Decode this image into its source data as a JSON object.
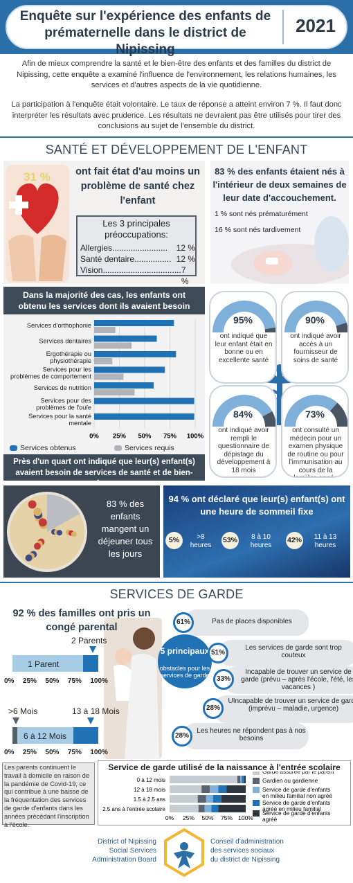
{
  "header": {
    "title_line1": "Enquête sur l'expérience des enfants de",
    "title_line2": "prématernelle dans le district de Nipissing",
    "year": "2021"
  },
  "intro": {
    "p1": "Afin de mieux comprendre la santé et le bien-être des enfants et des familles du district de Nipissing, cette enquête a examiné l'influence de l'environnement, les relations humaines, les services et d'autres aspects de la vie quotidienne.",
    "p2": "La participation à l'enquête était volontaire. Le taux de réponse a atteint environ 7 %. Il faut donc interpréter les résultats avec prudence. Les résultats ne devraient pas être utilisés pour tirer des conclusions au sujet de l'ensemble du district."
  },
  "health": {
    "section_title": "SANTÉ ET DÉVELOPPEMENT DE L'ENFANT",
    "pct31": "31 %",
    "pct31_text": "ont fait état d'au moins un problème de santé chez l'enfant",
    "concerns_title": "Les 3 principales préoccupations:",
    "concerns": [
      {
        "label": "Allergies........................",
        "val": "12 %"
      },
      {
        "label": "Santé dentaire................",
        "val": "12 %"
      },
      {
        "label": "Vision..................................",
        "val": "7 %"
      }
    ],
    "birth_title": "83 % des enfants étaient nés à l'intérieur de deux semaines de leur date d'accouchement.",
    "birth_pre": "1 % sont nés prématurément",
    "birth_post": "16 % sont nés tardivement",
    "services_title": "Dans la majorité des cas, les enfants ont obtenu les services dont ils avaient besoin",
    "services_footer": "Près d'un quart ont indiqué que leur(s) enfant(s) avaient besoin de services de santé et de bien-être.",
    "gauges": [
      {
        "pct": "95%",
        "value": 95,
        "text": "ont indiqué que leur enfant était en bonne ou en excellente santé"
      },
      {
        "pct": "90%",
        "value": 90,
        "text": "ont indiqué avoir accès à un fournisseur de soins de santé"
      },
      {
        "pct": "84%",
        "value": 84,
        "text": "ont indiqué avoir rempli le questionnaire de dépistage du développement à 18 mois"
      },
      {
        "pct": "73%",
        "value": 73,
        "text": "ont consulté un médecin pour un examen physique de routine ou pour l'immunisation au cours de la dernière année."
      }
    ],
    "breakfast": "83 % des enfants mangent un déjeuner tous les jours",
    "breakfast_value": 83,
    "sleep_title": "94 % ont déclaré que leur(s) enfant(s) ont une heure de sommeil fixe",
    "sleep": [
      {
        "pct": "5%",
        "label": ">8 heures"
      },
      {
        "pct": "53%",
        "label": "8 à 10 heures"
      },
      {
        "pct": "42%",
        "label": "11 à 13 heures"
      }
    ]
  },
  "childcare": {
    "section_title": "SERVICES DE GARDE",
    "leave_title": "92 % des familles ont pris un congé parental",
    "leave_top_label": "2 Parents",
    "leave_bar_label": "1 Parent",
    "leave_value": 0.82,
    "dur_left_label": ">6 Mois",
    "dur_right_label": "13 à 18 Mois",
    "dur_bar_label": "6 à 12 Mois",
    "axis_ticks": [
      "0%",
      "25%",
      "50%",
      "75%",
      "100%"
    ],
    "barriers_head": "5 principaux",
    "barriers_sub": "obstacles pour les services de garde",
    "barriers": [
      {
        "pct": "61%",
        "text": "Pas de places disponibles"
      },
      {
        "pct": "51%",
        "text": "Les services de garde sont trop couteux"
      },
      {
        "pct": "33%",
        "text": "Incapable de trouver un service de garde (prévu – après l'école, l'été, les vacances )"
      },
      {
        "pct": "28%",
        "text": "UIncapable de trouver un service de garde (imprévu – maladie, urgence)"
      },
      {
        "pct": "28%",
        "text": "Les heures ne répondent pas à nos besoins"
      }
    ],
    "covid_note": "Les parents continuent le travail à domicile en raison de la pandémie de Covid-19, ce qui contribue à une baisse de la fréquentation des services de garde d'enfants dans les années précédant l'inscription à l'école."
  },
  "footer": {
    "left1": "District of Nipissing",
    "left2": "Social Services",
    "left3": "Administration Board",
    "right1": "Conseil d'administration",
    "right2": "des services sociaux",
    "right3": "du district de Nipissing"
  },
  "colors": {
    "primary": "#2171b5",
    "dark": "#3d4a58",
    "gray": "#b0b3ba",
    "navy": "#2a3a4a"
  },
  "chart_data": [
    {
      "type": "bar",
      "title": "Dans la majorité des cas, les enfants ont obtenu les services dont ils avaient besoin",
      "categories": [
        "Services d'orthophonie",
        "Services dentaires",
        "Ergothérapie ou physiothérapie",
        "Services pour les problèmes de comportement",
        "Services de nutrition",
        "Services pour des problèmes de l'ouïe",
        "Services pour la santé mentale"
      ],
      "series": [
        {
          "name": "Services obtenus",
          "values": [
            79,
            62,
            81,
            70,
            59,
            99,
            99
          ]
        },
        {
          "name": "Services requis",
          "values": [
            21,
            37,
            18,
            29,
            40,
            0,
            0
          ]
        }
      ],
      "xticks": [
        "0%",
        "25%",
        "50%",
        "75%",
        "100%"
      ],
      "xlim": [
        0,
        100
      ],
      "legend": "bottom-left"
    },
    {
      "type": "bar",
      "title": "Service de garde utilisé de la naissance à l'entrée scolaire",
      "categories": [
        "0 à 12 mois",
        "12 à 18 mois",
        "1.5 à 2.5 ans",
        "2.5 ans à l'entrée scolaire"
      ],
      "series": [
        {
          "name": "Garde assurée par le parent",
          "values": [
            89,
            42,
            37,
            38
          ]
        },
        {
          "name": "Gardien ou gardienne",
          "values": [
            4,
            11,
            11,
            8
          ]
        },
        {
          "name": "Service de garde d'enfants en milieu familial non agréé",
          "values": [
            2,
            11,
            9,
            9
          ]
        },
        {
          "name": "Service de garde d'enfants agréé en milieu familial",
          "values": [
            3,
            11,
            11,
            9
          ]
        },
        {
          "name": "Service de garde d'enfants agréé",
          "values": [
            2,
            25,
            32,
            36
          ]
        }
      ],
      "xticks": [
        "0%",
        "25%",
        "50%",
        "75%",
        "100%"
      ],
      "xlim": [
        0,
        100
      ],
      "stacked": true,
      "legend": "right"
    }
  ]
}
